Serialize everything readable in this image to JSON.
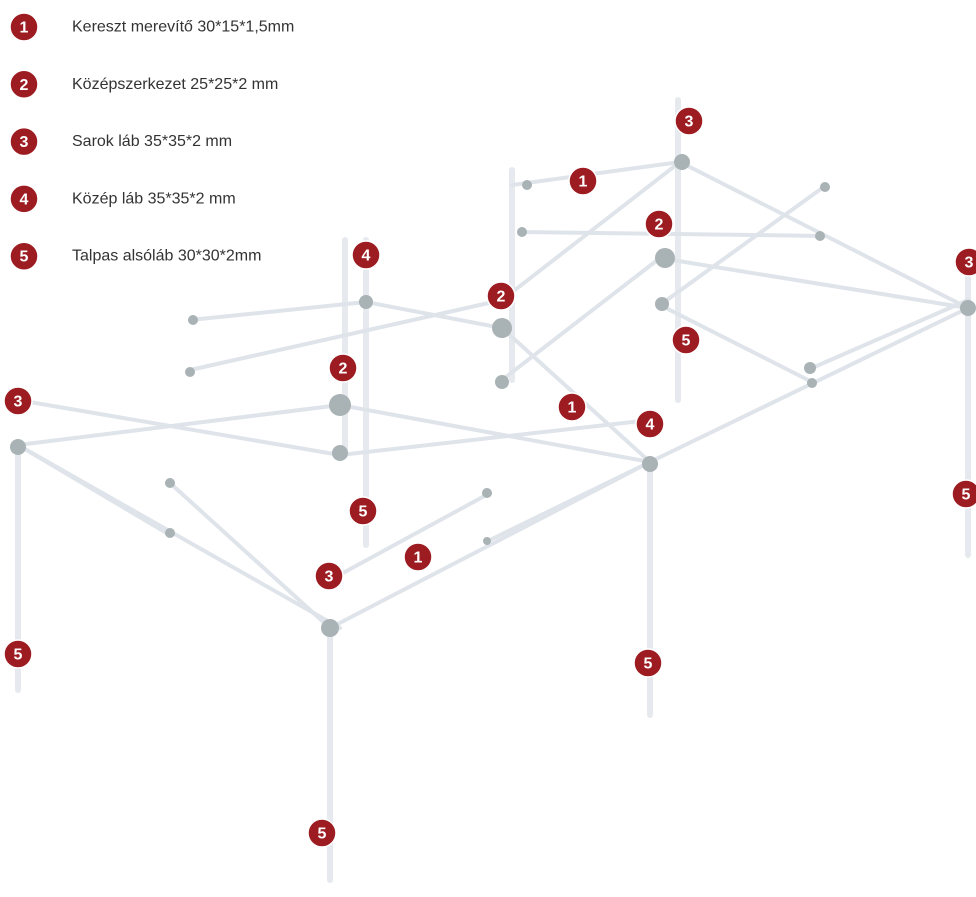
{
  "legend": [
    {
      "number": 1,
      "label": "Kereszt merevítő 30*15*1,5mm"
    },
    {
      "number": 2,
      "label": "Középszerkezet 25*25*2 mm"
    },
    {
      "number": 3,
      "label": "Sarok láb 35*35*2 mm"
    },
    {
      "number": 4,
      "label": "Közép láb 35*35*2 mm"
    },
    {
      "number": 5,
      "label": "Talpas alsóláb 30*30*2mm"
    }
  ],
  "callouts": [
    1,
    1,
    1,
    2,
    2,
    2,
    3,
    3,
    3,
    3,
    4,
    4,
    5,
    5,
    5,
    5,
    5,
    5
  ]
}
